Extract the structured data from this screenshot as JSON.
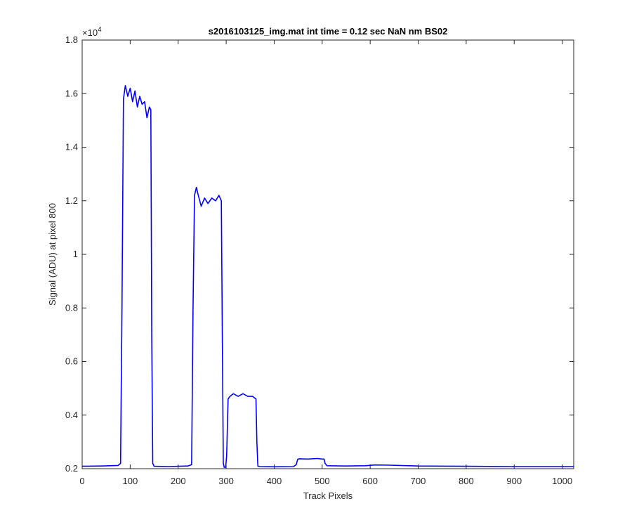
{
  "chart_data": {
    "type": "line",
    "title": "s2016103125_img.mat int time = 0.12 sec  NaN nm BS02",
    "xlabel": "Track Pixels",
    "ylabel": "Signal (ADU) at pixel 800",
    "y_exponent_label": "×10",
    "y_exponent_power": "4",
    "xlim": [
      0,
      1024
    ],
    "ylim": [
      0.2,
      1.8
    ],
    "y_scale_factor": 10000,
    "x_ticks": [
      0,
      100,
      200,
      300,
      400,
      500,
      600,
      700,
      800,
      900,
      1000
    ],
    "x_tick_labels": [
      "0",
      "100",
      "200",
      "300",
      "400",
      "500",
      "600",
      "700",
      "800",
      "900",
      "1000"
    ],
    "y_ticks": [
      0.2,
      0.4,
      0.6,
      0.8,
      1.0,
      1.2,
      1.4,
      1.6,
      1.8
    ],
    "y_tick_labels": [
      "0.2",
      "0.4",
      "0.6",
      "0.8",
      "1",
      "1.2",
      "1.4",
      "1.6",
      "1.8"
    ],
    "grid": false,
    "line_color": "#0000ff",
    "series": [
      {
        "x": [
          0,
          40,
          75,
          80,
          83,
          86,
          90,
          95,
          100,
          105,
          110,
          115,
          120,
          125,
          130,
          135,
          140,
          143,
          145,
          147,
          150,
          180,
          220,
          228,
          231,
          234,
          238,
          242,
          248,
          255,
          262,
          270,
          278,
          285,
          290,
          292,
          294,
          296,
          299,
          301,
          304,
          308,
          315,
          325,
          335,
          345,
          355,
          362,
          364,
          366,
          370,
          400,
          440,
          446,
          449,
          452,
          470,
          490,
          500,
          504,
          506,
          510,
          550,
          590,
          610,
          640,
          700,
          800,
          900,
          1024
        ],
        "y": [
          0.209,
          0.21,
          0.212,
          0.22,
          0.8,
          1.58,
          1.63,
          1.59,
          1.62,
          1.57,
          1.61,
          1.55,
          1.59,
          1.56,
          1.57,
          1.51,
          1.55,
          1.54,
          0.7,
          0.22,
          0.209,
          0.208,
          0.21,
          0.215,
          0.8,
          1.22,
          1.25,
          1.22,
          1.18,
          1.21,
          1.19,
          1.21,
          1.2,
          1.22,
          1.2,
          0.7,
          0.22,
          0.205,
          0.205,
          0.25,
          0.46,
          0.47,
          0.48,
          0.47,
          0.48,
          0.47,
          0.47,
          0.46,
          0.3,
          0.21,
          0.208,
          0.207,
          0.208,
          0.215,
          0.235,
          0.237,
          0.236,
          0.238,
          0.236,
          0.236,
          0.22,
          0.211,
          0.21,
          0.211,
          0.214,
          0.213,
          0.21,
          0.209,
          0.208,
          0.208
        ]
      }
    ]
  }
}
